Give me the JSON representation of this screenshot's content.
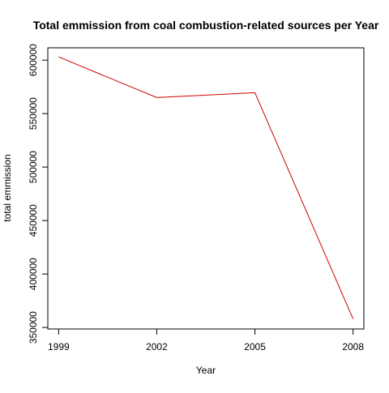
{
  "chart_data": {
    "type": "line",
    "title": "Total emmission from coal combustion-related sources per Year",
    "xlabel": "Year",
    "ylabel": "total emmission",
    "x": [
      1999,
      2002,
      2005,
      2008
    ],
    "x_tick_labels": [
      "1999",
      "2002",
      "2005",
      "2008"
    ],
    "series": [
      {
        "values": [
          603000,
          565000,
          569500,
          358000
        ],
        "color": "#cc0000"
      }
    ],
    "y_ticks": [
      350000,
      400000,
      450000,
      500000,
      550000,
      600000
    ],
    "y_tick_labels": [
      "350000",
      "400000",
      "450000",
      "500000",
      "550000",
      "600000"
    ],
    "xlim": [
      1998.67,
      2008.33
    ],
    "ylim": [
      348600,
      611500
    ],
    "grid": false,
    "legend": "none"
  }
}
